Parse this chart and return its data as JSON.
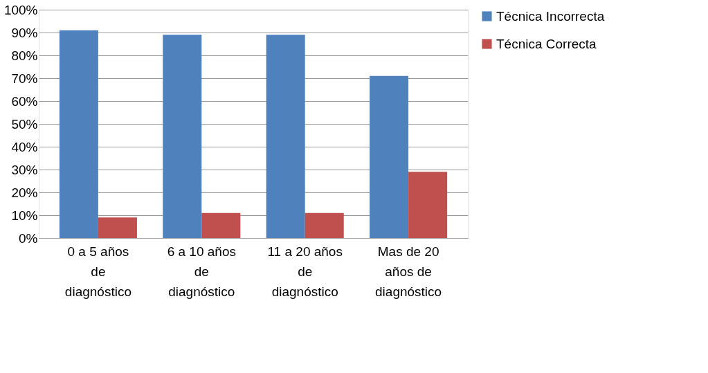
{
  "chart_data": {
    "type": "bar",
    "categories": [
      "0 a 5 años de diagnóstico",
      "6 a 10 años de diagnóstico",
      "11 a 20 años de diagnóstico",
      "Mas de 20 años de diagnóstico"
    ],
    "series": [
      {
        "name": "Técnica Incorrecta",
        "color": "#4f81bd",
        "values": [
          91,
          89,
          89,
          71
        ]
      },
      {
        "name": "Técnica Correcta",
        "color": "#c0504d",
        "values": [
          9,
          11,
          11,
          29
        ]
      }
    ],
    "ylim": [
      0,
      100
    ],
    "yticks": [
      {
        "value": 0,
        "label": "0%"
      },
      {
        "value": 10,
        "label": "10%"
      },
      {
        "value": 20,
        "label": "20%"
      },
      {
        "value": 30,
        "label": "30%"
      },
      {
        "value": 40,
        "label": "40%"
      },
      {
        "value": 50,
        "label": "50%"
      },
      {
        "value": 60,
        "label": "60%"
      },
      {
        "value": 70,
        "label": "70%"
      },
      {
        "value": 80,
        "label": "80%"
      },
      {
        "value": 90,
        "label": "90%"
      },
      {
        "value": 100,
        "label": "100%"
      }
    ],
    "grid": "y",
    "legend": "right"
  }
}
